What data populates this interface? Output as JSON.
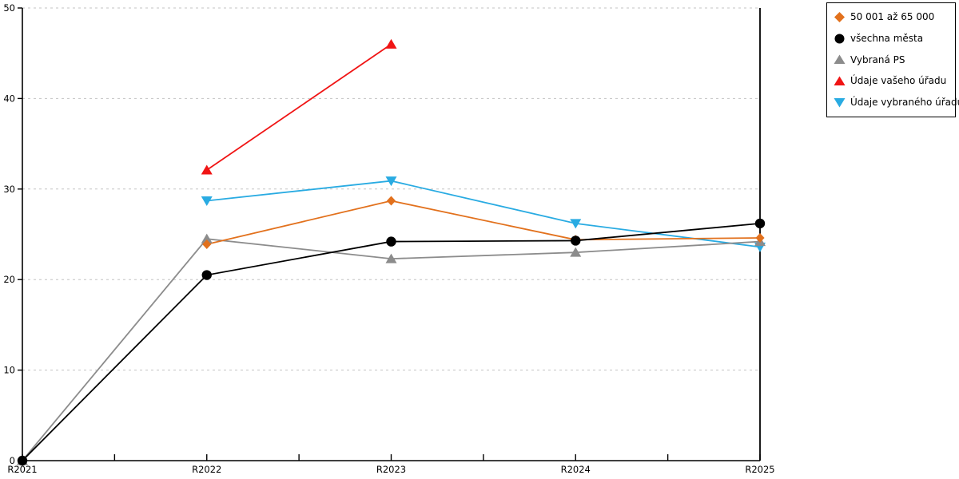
{
  "chart_data": {
    "type": "line",
    "title": "",
    "xlabel": "",
    "ylabel": "",
    "x": [
      "R2021",
      "R2022",
      "R2023",
      "R2024",
      "R2025"
    ],
    "series": [
      {
        "name": "50 001 až 65 000",
        "color": "#E2711D",
        "marker": "diamond",
        "values": [
          null,
          23.9,
          28.7,
          24.4,
          24.6
        ]
      },
      {
        "name": "všechna města",
        "color": "#000000",
        "marker": "circle",
        "values": [
          0,
          20.5,
          24.2,
          24.3,
          26.2
        ]
      },
      {
        "name": "Vybraná PS",
        "color": "#8C8C8C",
        "marker": "triangle-up",
        "values": [
          0,
          24.5,
          22.3,
          23.0,
          24.2
        ]
      },
      {
        "name": "Údaje vašeho úřadu",
        "color": "#F01414",
        "marker": "triangle-up",
        "values": [
          null,
          32.1,
          46.0,
          null,
          null
        ]
      },
      {
        "name": "Údaje vybraného úřadu",
        "color": "#29ABE2",
        "marker": "triangle-down",
        "values": [
          null,
          28.7,
          30.9,
          26.2,
          23.6
        ]
      }
    ],
    "ylim": [
      0,
      50
    ],
    "yticks": [
      0,
      10,
      20,
      30,
      40,
      50
    ],
    "grid": "horizontal-dashed",
    "legend_position": "top-right-outside"
  },
  "colors": {
    "axis": "#000000",
    "grid": "#C3C3C3",
    "background": "#FFFFFF",
    "legend_border": "#000000"
  }
}
